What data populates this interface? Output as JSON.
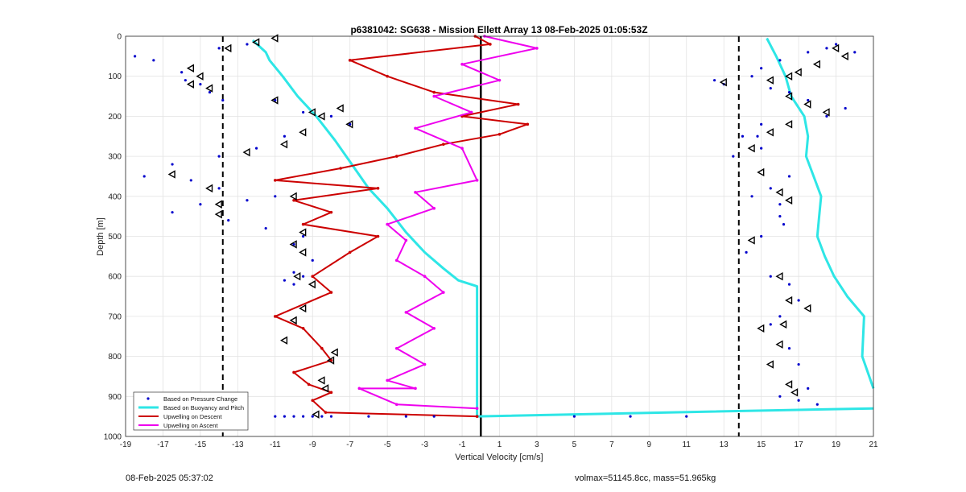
{
  "chart_data": {
    "type": "line",
    "title": "p6381042: SG638 - Mission Ellett Array 13 08-Feb-2025 01:05:53Z",
    "xlabel": "Vertical Velocity [cm/s]",
    "ylabel": "Depth [m]",
    "xlim": [
      -19,
      21
    ],
    "ylim": [
      0,
      1000
    ],
    "y_reversed": true,
    "grid": true,
    "x_ticks": [
      -19,
      -17,
      -15,
      -13,
      -11,
      -9,
      -7,
      -5,
      -3,
      -1,
      1,
      3,
      5,
      7,
      9,
      11,
      13,
      15,
      17,
      19,
      21
    ],
    "y_ticks": [
      0,
      100,
      200,
      300,
      400,
      500,
      600,
      700,
      800,
      900,
      1000
    ],
    "legend_position": "bottom-left",
    "legend": [
      {
        "label": "Based on Pressure Change",
        "color": "#0000cc",
        "style": "dots"
      },
      {
        "label": "Based on Buoyancy and Pitch",
        "color": "#2ee6e6",
        "style": "thick-line"
      },
      {
        "label": "Upwelling on Descent",
        "color": "#cc0000",
        "style": "line"
      },
      {
        "label": "Upwelling on Ascent",
        "color": "#ee00ee",
        "style": "line"
      }
    ],
    "reference_lines": {
      "dashed_x": [
        -13.8,
        13.8
      ],
      "solid_x": [
        0
      ]
    },
    "series": [
      {
        "name": "Based on Buoyancy and Pitch",
        "color": "#2ee6e6",
        "x": [
          -12.2,
          -11.5,
          -11.3,
          -10.6,
          -9.8,
          -8.8,
          -7.8,
          -6.9,
          -6.0,
          -5.0,
          -4.0,
          -3.0,
          -2.0,
          -1.2,
          -0.2,
          -0.2,
          -0.2,
          10.0,
          21.0
        ],
        "y": [
          10,
          40,
          60,
          100,
          150,
          200,
          260,
          320,
          380,
          430,
          490,
          540,
          580,
          610,
          625,
          800,
          950,
          940,
          930
        ]
      },
      {
        "name": "Based on Buoyancy and Pitch (ascent side)",
        "color": "#2ee6e6",
        "x": [
          15.3,
          15.8,
          16.3,
          16.6,
          17.3,
          17.5,
          17.4,
          17.8,
          18.2,
          18.1,
          18.0,
          18.4,
          18.9,
          19.6,
          20.5,
          20.4,
          21.0
        ],
        "y": [
          5,
          50,
          100,
          150,
          200,
          250,
          300,
          350,
          400,
          450,
          500,
          550,
          600,
          650,
          700,
          800,
          880
        ]
      },
      {
        "name": "Upwelling on Descent",
        "color": "#cc0000",
        "x": [
          -0.3,
          0.5,
          -7.0,
          -5.0,
          -2.5,
          2.0,
          -1.0,
          2.5,
          1.0,
          -2.0,
          -4.5,
          -7.5,
          -11.0,
          -5.5,
          -10.0,
          -8.0,
          -9.5,
          -5.5,
          -7.0,
          -9.0,
          -8.0,
          -11.0,
          -9.5,
          -8.5,
          -8.0,
          -10.0,
          -9.2,
          -8.0,
          -9.0,
          -8.3,
          -0.2
        ],
        "y": [
          0,
          20,
          60,
          100,
          140,
          170,
          200,
          220,
          245,
          270,
          300,
          330,
          360,
          380,
          410,
          440,
          470,
          500,
          540,
          600,
          640,
          700,
          730,
          780,
          810,
          840,
          870,
          890,
          910,
          940,
          950
        ]
      },
      {
        "name": "Upwelling on Ascent",
        "color": "#ee00ee",
        "x": [
          0.2,
          3.0,
          -1.0,
          1.0,
          -2.5,
          -0.5,
          -3.5,
          -1.0,
          -0.2,
          -3.5,
          -2.5,
          -5.0,
          -4.0,
          -4.5,
          -3.0,
          -2.0,
          -4.0,
          -2.5,
          -4.5,
          -3.0,
          -5.0,
          -3.5,
          -6.5,
          -4.5,
          -0.2
        ],
        "y": [
          0,
          30,
          70,
          110,
          150,
          190,
          230,
          280,
          360,
          390,
          430,
          470,
          510,
          560,
          600,
          640,
          690,
          730,
          780,
          820,
          860,
          880,
          880,
          920,
          930
        ]
      }
    ],
    "scatter": {
      "name": "Based on Pressure Change",
      "color": "#0000cc",
      "x": [
        -12.5,
        -14.0,
        -17.5,
        -18.5,
        -16.0,
        -15.0,
        -14.5,
        -15.8,
        -13.8,
        -11.0,
        -9.5,
        -8.0,
        -7.0,
        -10.5,
        -12.0,
        -14.0,
        -16.5,
        -18.0,
        -15.5,
        -14.0,
        -11.0,
        -12.5,
        -15.0,
        -16.5,
        -13.5,
        -11.5,
        -9.5,
        -10.0,
        -9.0,
        -10.0,
        -9.5,
        -10.5,
        -10.0,
        12.5,
        13.0,
        14.5,
        15.0,
        16.0,
        17.5,
        18.5,
        19.0,
        20.0,
        14.0,
        13.5,
        15.0,
        16.5,
        14.5,
        15.5,
        16.0,
        15.0,
        14.2,
        15.5,
        16.5,
        17.0,
        16.0,
        15.5,
        16.5,
        17.0,
        17.5,
        5.0,
        8.0,
        11.0,
        -6.0,
        -4.0,
        -2.5,
        -9.5,
        -8.5,
        -8.0,
        -11.0,
        -10.5,
        -10.0,
        -9.0,
        16.0,
        17.0,
        18.0,
        18.5,
        19.5,
        17.5,
        16.5,
        15.5,
        15.0,
        14.8,
        16.0,
        16.2
      ],
      "y": [
        20,
        30,
        60,
        50,
        90,
        120,
        140,
        110,
        160,
        160,
        190,
        200,
        220,
        250,
        280,
        300,
        320,
        350,
        360,
        380,
        400,
        410,
        420,
        440,
        460,
        480,
        500,
        520,
        560,
        590,
        600,
        610,
        620,
        110,
        120,
        100,
        80,
        60,
        40,
        30,
        20,
        40,
        250,
        300,
        280,
        350,
        400,
        380,
        420,
        500,
        540,
        600,
        620,
        660,
        700,
        720,
        780,
        820,
        880,
        950,
        950,
        950,
        950,
        950,
        950,
        950,
        950,
        950,
        950,
        950,
        950,
        950,
        900,
        910,
        920,
        200,
        180,
        160,
        140,
        130,
        220,
        250,
        450,
        470
      ]
    },
    "markers": {
      "name": "triangle markers",
      "x": [
        -11.0,
        -12.0,
        -13.5,
        -15.5,
        -15.0,
        -15.5,
        -14.5,
        -11.0,
        -9.0,
        -7.5,
        -8.5,
        -7.0,
        -9.5,
        -12.5,
        -10.5,
        -16.5,
        -14.5,
        -14.0,
        -14.0,
        -10.0,
        -9.5,
        -10.0,
        -9.5,
        -9.8,
        -9.0,
        -9.5,
        -10.0,
        -10.5,
        -7.8,
        -8.0,
        -8.5,
        -8.3,
        -8.8,
        19.0,
        19.5,
        18.0,
        17.0,
        16.5,
        15.5,
        13.0,
        16.5,
        17.5,
        18.5,
        16.5,
        15.5,
        14.5,
        15.0,
        16.0,
        16.5,
        14.5,
        16.0,
        16.5,
        17.5,
        16.2,
        15.0,
        16.0,
        15.5,
        16.5,
        16.8
      ],
      "y": [
        5,
        15,
        30,
        80,
        100,
        120,
        130,
        160,
        190,
        180,
        200,
        220,
        240,
        290,
        270,
        345,
        380,
        420,
        445,
        400,
        490,
        520,
        540,
        600,
        620,
        680,
        710,
        760,
        790,
        810,
        860,
        880,
        945,
        30,
        50,
        70,
        90,
        100,
        110,
        115,
        150,
        170,
        190,
        220,
        240,
        280,
        340,
        390,
        410,
        510,
        600,
        660,
        680,
        720,
        730,
        770,
        820,
        870,
        890
      ]
    }
  },
  "footer": {
    "left_text": "08-Feb-2025 05:37:02",
    "right_text": "volmax=51145.8cc, mass=51.965kg"
  }
}
